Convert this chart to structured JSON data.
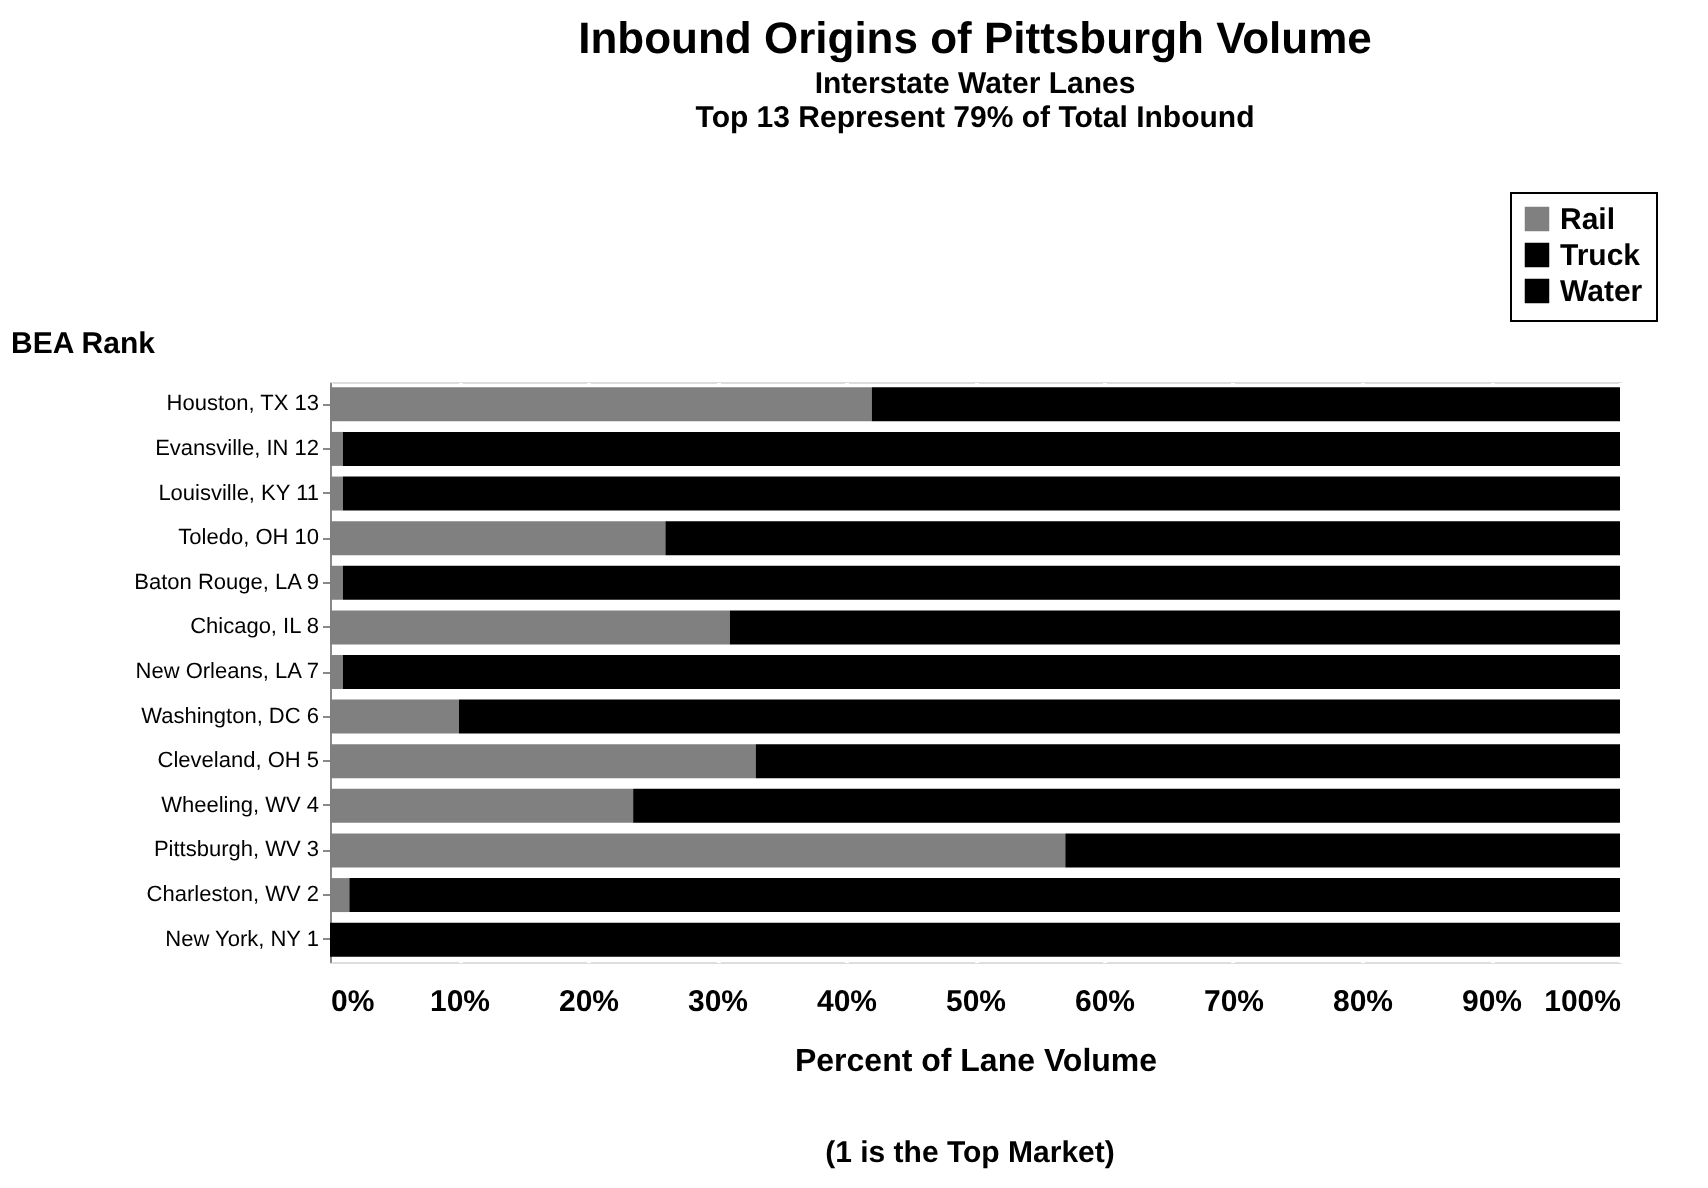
{
  "chart_data": {
    "type": "bar",
    "orientation": "horizontal",
    "stacked": true,
    "title": "Inbound Origins of Pittsburgh Volume",
    "subtitle": "Interstate Water Lanes\nTop 13 Represent 79% of Total Inbound",
    "xlabel": "Percent of Lane Volume",
    "ylabel": "BEA   Rank",
    "annotations": [
      "(1 is the Top Market)"
    ],
    "categories": [
      "Houston, TX 13",
      "Evansville, IN 12",
      "Louisville, KY 11",
      "Toledo, OH 10",
      "Baton Rouge, LA 9",
      "Chicago, IL 8",
      "New Orleans, LA 7",
      "Washington, DC 6",
      "Cleveland, OH 5",
      "Wheeling, WV 4",
      "Pittsburgh, WV 3",
      "Charleston, WV 2",
      "New York, NY 1"
    ],
    "series": [
      {
        "name": "Rail",
        "color": "#808080",
        "values": [
          42,
          1,
          1,
          26,
          1,
          31,
          1,
          10,
          33,
          23.5,
          57,
          1.5,
          0
        ]
      },
      {
        "name": "Truck",
        "color": "#000000",
        "values": [
          0,
          0,
          0,
          0,
          0,
          0,
          0,
          0,
          0,
          0,
          0,
          0,
          0
        ]
      },
      {
        "name": "Water",
        "color": "#000000",
        "values": [
          58,
          99,
          99,
          74,
          99,
          69,
          99,
          90,
          67,
          76.5,
          43,
          98.5,
          100
        ]
      }
    ],
    "xlim": [
      0,
      100
    ],
    "xticks": [
      {
        "value": 0,
        "label": "0%"
      },
      {
        "value": 10,
        "label": "10%"
      },
      {
        "value": 20,
        "label": "20%"
      },
      {
        "value": 30,
        "label": "30%"
      },
      {
        "value": 40,
        "label": "40%"
      },
      {
        "value": 50,
        "label": "50%"
      },
      {
        "value": 60,
        "label": "60%"
      },
      {
        "value": 70,
        "label": "70%"
      },
      {
        "value": 80,
        "label": "80%"
      },
      {
        "value": 90,
        "label": "90%"
      },
      {
        "value": 100,
        "label": "100%"
      }
    ],
    "grid": "x",
    "legend": "top right"
  }
}
